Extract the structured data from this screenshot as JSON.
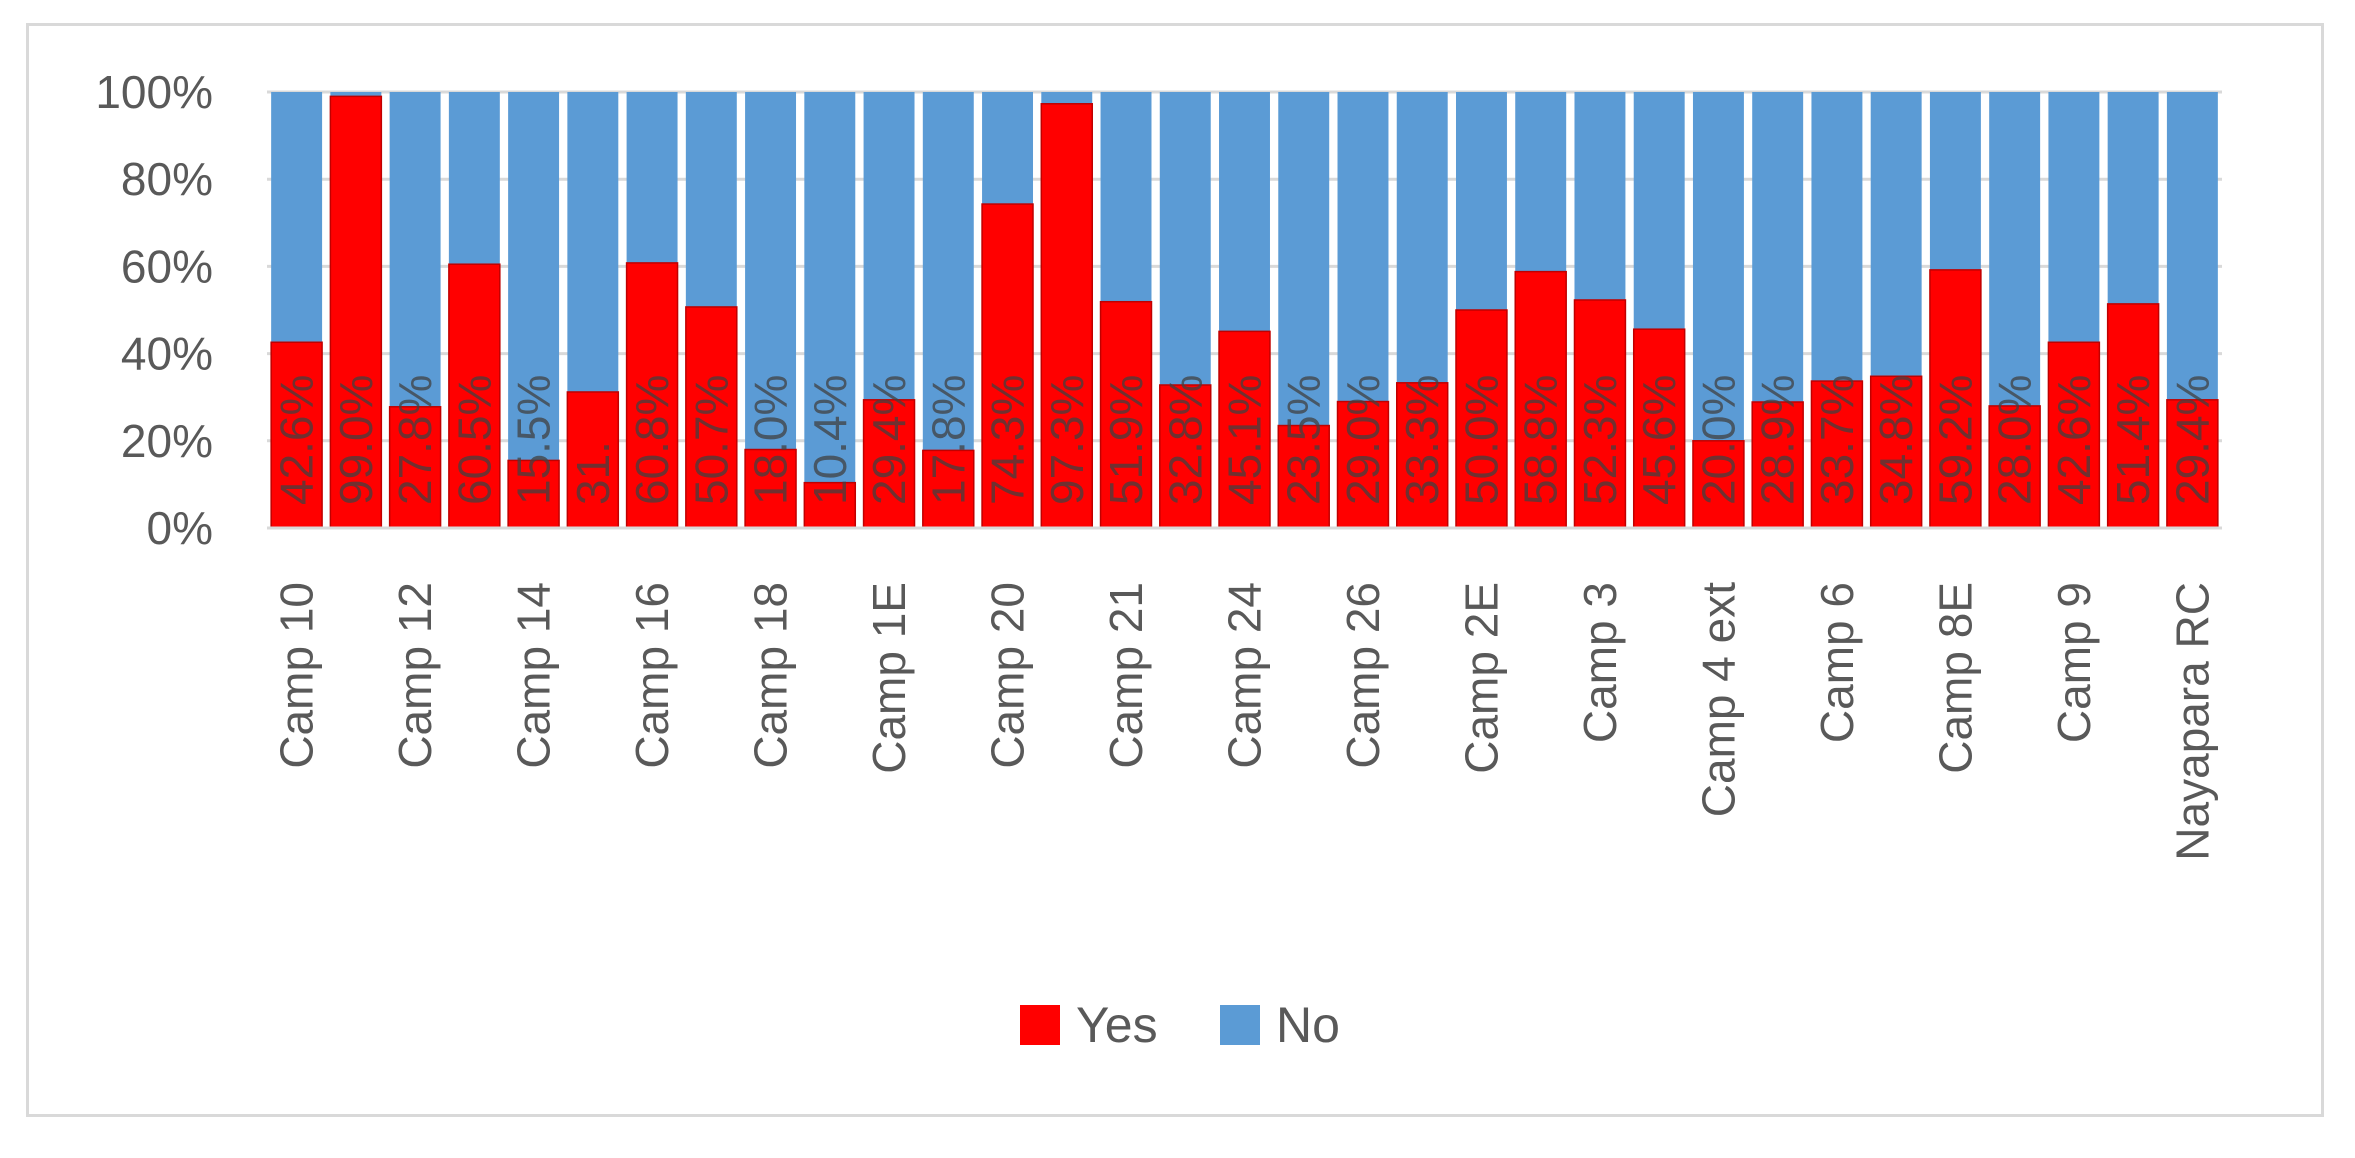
{
  "chart_data": {
    "type": "bar",
    "stacked": "percent",
    "categories": [
      "Camp 10",
      "",
      "Camp 12",
      "",
      "Camp 14",
      "",
      "Camp 16",
      "",
      "Camp 18",
      "",
      "Camp 1E",
      "",
      "Camp 20",
      "",
      "Camp 21",
      "",
      "Camp 24",
      "",
      "Camp 26",
      "",
      "Camp 2E",
      "",
      "Camp 3",
      "",
      "Camp 4 ext",
      "",
      "Camp 6",
      "",
      "Camp 8E",
      "",
      "Camp 9",
      "",
      "Nayapara RC"
    ],
    "series": [
      {
        "name": "Yes",
        "color": "#ff0000",
        "values": [
          42.6,
          99.0,
          27.8,
          60.5,
          15.5,
          31.2,
          60.8,
          50.7,
          18.0,
          10.4,
          29.4,
          17.8,
          74.3,
          97.3,
          51.9,
          32.8,
          45.1,
          23.5,
          29.0,
          33.3,
          50.0,
          58.8,
          52.3,
          45.6,
          20.0,
          28.9,
          33.7,
          34.8,
          59.2,
          28.0,
          42.6,
          51.4,
          29.4
        ]
      },
      {
        "name": "No",
        "color": "#5b9bd5"
      }
    ],
    "data_labels": [
      "42.6%",
      "99.0%",
      "27.8%",
      "60.5%",
      "15.5%",
      "31.",
      "60.8%",
      "50.7%",
      "18.0%",
      "10.4%",
      "29.4%",
      "17.8%",
      "74.3%",
      "97.3%",
      "51.9%",
      "32.8%",
      "45.1%",
      "23.5%",
      "29.0%",
      "33.3%",
      "50.0%",
      "58.8%",
      "52.3%",
      "45.6%",
      "20.0%",
      "28.9%",
      "33.7%",
      "34.8%",
      "59.2%",
      "28.0%",
      "42.6%",
      "51.4%",
      "29.4%"
    ],
    "yticks": [
      "0%",
      "20%",
      "40%",
      "60%",
      "80%",
      "100%"
    ],
    "ylim": [
      0,
      100
    ],
    "grid": true,
    "legend": "bottom",
    "xlabel": "",
    "ylabel": "",
    "title": ""
  }
}
